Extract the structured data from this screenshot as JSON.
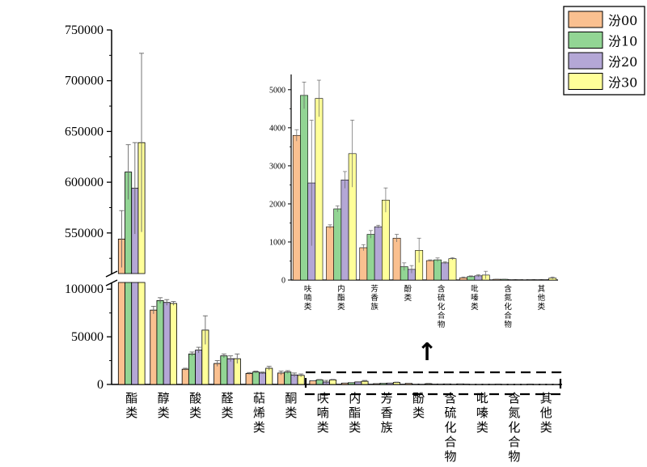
{
  "chart_data": {
    "type": "bar",
    "main": {
      "categories": [
        "酯类",
        "醇类",
        "酸类",
        "醛类",
        "萜烯类",
        "酮类",
        "呋喃类",
        "内酯类",
        "芳香族",
        "酚类",
        "含硫化合物",
        "吡嗪类",
        "含氮化合物",
        "其他类"
      ],
      "y_ticks_upper": [
        550000,
        600000,
        650000,
        700000,
        750000
      ],
      "y_ticks_lower": [
        0,
        50000,
        100000
      ],
      "y_axis_break": [
        107000,
        510000
      ],
      "series": [
        {
          "name": "汾00",
          "color": "#fac090",
          "values": [
            544000,
            78000,
            16000,
            22000,
            11500,
            12000,
            3800,
            1400,
            850,
            1100,
            510,
            60,
            20,
            10
          ],
          "errors": [
            28000,
            4000,
            1000,
            3000,
            1000,
            2000,
            150,
            50,
            80,
            100,
            20,
            20,
            5,
            5
          ]
        },
        {
          "name": "汾10",
          "color": "#92d594",
          "values": [
            610000,
            88000,
            32000,
            30000,
            13000,
            13000,
            4850,
            1870,
            1200,
            350,
            530,
            90,
            20,
            10
          ],
          "errors": [
            27000,
            3000,
            2000,
            2000,
            1000,
            1500,
            350,
            80,
            100,
            100,
            50,
            20,
            5,
            5
          ]
        },
        {
          "name": "汾20",
          "color": "#b4a7d6",
          "values": [
            594000,
            86000,
            36000,
            27000,
            12000,
            10000,
            2550,
            2630,
            1400,
            280,
            450,
            110,
            10,
            10
          ],
          "errors": [
            45000,
            3000,
            3000,
            3000,
            1000,
            2000,
            1650,
            220,
            40,
            100,
            30,
            30,
            5,
            5
          ]
        },
        {
          "name": "汾30",
          "color": "#ffff99",
          "values": [
            639000,
            85000,
            57000,
            27000,
            17000,
            9500,
            4770,
            3320,
            2100,
            780,
            560,
            130,
            10,
            50
          ],
          "errors": [
            88000,
            2000,
            15000,
            5000,
            2000,
            1500,
            480,
            880,
            320,
            320,
            30,
            100,
            5,
            30
          ]
        }
      ]
    },
    "inset": {
      "categories": [
        "呋喃类",
        "内酯类",
        "芳香族",
        "酚类",
        "含硫化合物",
        "吡嗪类",
        "含氮化合物",
        "其他类"
      ],
      "y_ticks": [
        0,
        1000,
        2000,
        3000,
        4000,
        5000
      ],
      "ylim": [
        0,
        5400
      ]
    },
    "legend": [
      "汾00",
      "汾10",
      "汾20",
      "汾30"
    ],
    "arrow_label": "↑"
  }
}
